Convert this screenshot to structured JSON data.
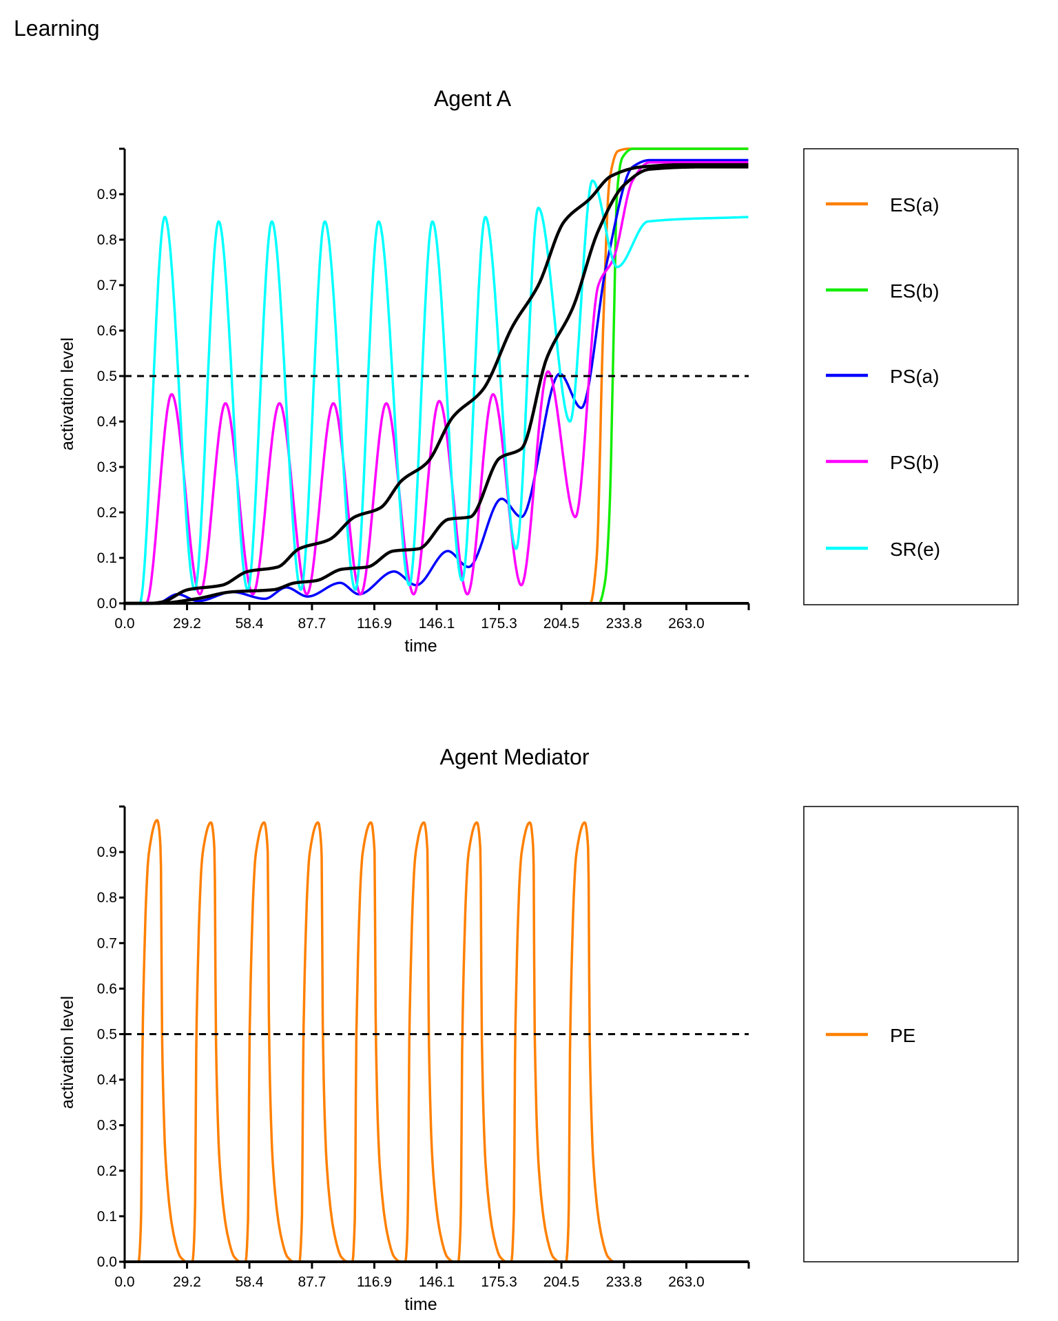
{
  "page_title": "Learning",
  "chart_data": [
    {
      "type": "line",
      "title": "Agent A",
      "xlabel": "time",
      "ylabel": "activation level",
      "xlim": [
        0,
        292.2
      ],
      "ylim": [
        0,
        1.0
      ],
      "xticks": [
        0.0,
        29.2,
        58.4,
        87.7,
        116.9,
        146.1,
        175.3,
        204.5,
        233.8,
        263.0,
        292.2
      ],
      "xtick_labels": [
        "0.0",
        "29.2",
        "58.4",
        "87.7",
        "116.9",
        "146.1",
        "175.3",
        "204.5",
        "233.8",
        "263.0"
      ],
      "yticks": [
        0.0,
        0.1,
        0.2,
        0.3,
        0.4,
        0.5,
        0.6,
        0.7,
        0.8,
        0.9,
        1.0
      ],
      "ytick_labels": [
        "0.0",
        "0.1",
        "0.2",
        "0.3",
        "0.4",
        "0.5",
        "0.6",
        "0.7",
        "0.8",
        "0.9"
      ],
      "threshold": 0.5,
      "legend_placement": "right",
      "series": [
        {
          "name": "ES(a)",
          "color": "#ff7f00",
          "points": [
            [
              0,
              0
            ],
            [
              218,
              0
            ],
            [
              221,
              0.1
            ],
            [
              224,
              0.6
            ],
            [
              227,
              0.93
            ],
            [
              231,
              0.995
            ],
            [
              236,
              1.0
            ],
            [
              292.2,
              1.0
            ]
          ]
        },
        {
          "name": "ES(b)",
          "color": "#11ee00",
          "points": [
            [
              0,
              0
            ],
            [
              222,
              0
            ],
            [
              225,
              0.05
            ],
            [
              227,
              0.2
            ],
            [
              229,
              0.6
            ],
            [
              230.5,
              0.9
            ],
            [
              233,
              0.98
            ],
            [
              238,
              1.0
            ],
            [
              292.2,
              1.0
            ]
          ]
        },
        {
          "name": "PS(a)",
          "color": "#0000ff",
          "points": [
            [
              0,
              0
            ],
            [
              15,
              0
            ],
            [
              24.8,
              0.02
            ],
            [
              34.4,
              0.005
            ],
            [
              50.4,
              0.025
            ],
            [
              65.6,
              0.01
            ],
            [
              75.7,
              0.035
            ],
            [
              85.7,
              0.015
            ],
            [
              100.9,
              0.045
            ],
            [
              109.7,
              0.02
            ],
            [
              126.1,
              0.07
            ],
            [
              136.5,
              0.04
            ],
            [
              151.3,
              0.115
            ],
            [
              161,
              0.08
            ],
            [
              176.5,
              0.23
            ],
            [
              185.7,
              0.19
            ],
            [
              203.7,
              0.505
            ],
            [
              213.8,
              0.43
            ],
            [
              225.8,
              0.75
            ],
            [
              237.8,
              0.96
            ],
            [
              245.8,
              0.975
            ],
            [
              292.2,
              0.975
            ]
          ]
        },
        {
          "name": "PS(b)",
          "color": "#ff00ff",
          "points": [
            [
              0,
              0
            ],
            [
              10,
              0
            ],
            [
              22,
              0.46
            ],
            [
              35.2,
              0.02
            ],
            [
              47.2,
              0.44
            ],
            [
              60,
              0.02
            ],
            [
              72.5,
              0.44
            ],
            [
              85.3,
              0.02
            ],
            [
              97.7,
              0.44
            ],
            [
              110.5,
              0.02
            ],
            [
              122.5,
              0.44
            ],
            [
              135.3,
              0.02
            ],
            [
              147.3,
              0.445
            ],
            [
              160.5,
              0.02
            ],
            [
              172.5,
              0.46
            ],
            [
              185.7,
              0.04
            ],
            [
              198.2,
              0.51
            ],
            [
              211,
              0.19
            ],
            [
              221.8,
              0.7
            ],
            [
              229,
              0.76
            ],
            [
              237.8,
              0.93
            ],
            [
              245.8,
              0.97
            ],
            [
              292.2,
              0.97
            ]
          ]
        },
        {
          "name": "SR(e)",
          "color": "#00ffff",
          "points": [
            [
              0,
              0
            ],
            [
              7,
              0
            ],
            [
              18.8,
              0.85
            ],
            [
              32.8,
              0.03
            ],
            [
              44,
              0.84
            ],
            [
              57.6,
              0.03
            ],
            [
              68.9,
              0.84
            ],
            [
              82.5,
              0.03
            ],
            [
              93.7,
              0.84
            ],
            [
              108,
              0.03
            ],
            [
              118.9,
              0.84
            ],
            [
              133.3,
              0.04
            ],
            [
              144.1,
              0.84
            ],
            [
              158,
              0.05
            ],
            [
              168.9,
              0.85
            ],
            [
              183.3,
              0.12
            ],
            [
              193.7,
              0.87
            ],
            [
              208.5,
              0.4
            ],
            [
              219,
              0.93
            ],
            [
              230.6,
              0.74
            ],
            [
              245,
              0.84
            ],
            [
              292.2,
              0.85
            ]
          ]
        },
        {
          "color": "#000000",
          "points": [
            [
              0,
              0
            ],
            [
              12,
              0
            ],
            [
              17.6,
              0.003
            ],
            [
              29.6,
              0.03
            ],
            [
              45.6,
              0.04
            ],
            [
              57.6,
              0.07
            ],
            [
              71.7,
              0.08
            ],
            [
              81.7,
              0.12
            ],
            [
              95.7,
              0.14
            ],
            [
              107.7,
              0.19
            ],
            [
              119.7,
              0.21
            ],
            [
              129.7,
              0.27
            ],
            [
              141.7,
              0.31
            ],
            [
              153.7,
              0.41
            ],
            [
              167.7,
              0.47
            ],
            [
              181.7,
              0.61
            ],
            [
              193.7,
              0.7
            ],
            [
              205.8,
              0.84
            ],
            [
              217.8,
              0.89
            ],
            [
              227.8,
              0.94
            ],
            [
              241.8,
              0.96
            ],
            [
              261.8,
              0.965
            ],
            [
              292.2,
              0.965
            ]
          ]
        },
        {
          "color": "#000000",
          "points": [
            [
              0,
              0
            ],
            [
              15,
              0
            ],
            [
              33.6,
              0.01
            ],
            [
              49.6,
              0.025
            ],
            [
              69.7,
              0.03
            ],
            [
              79.7,
              0.045
            ],
            [
              89.7,
              0.05
            ],
            [
              101.7,
              0.075
            ],
            [
              113.7,
              0.08
            ],
            [
              125.7,
              0.115
            ],
            [
              137.7,
              0.12
            ],
            [
              151.7,
              0.185
            ],
            [
              161.7,
              0.19
            ],
            [
              175.7,
              0.32
            ],
            [
              185.7,
              0.34
            ],
            [
              197.7,
              0.54
            ],
            [
              209.8,
              0.65
            ],
            [
              221.8,
              0.82
            ],
            [
              233.8,
              0.92
            ],
            [
              245.8,
              0.955
            ],
            [
              269.8,
              0.96
            ],
            [
              292.2,
              0.96
            ]
          ]
        }
      ]
    },
    {
      "type": "line",
      "title": "Agent Mediator",
      "xlabel": "time",
      "ylabel": "activation level",
      "xlim": [
        0,
        292.2
      ],
      "ylim": [
        0,
        1.0
      ],
      "xticks": [
        0.0,
        29.2,
        58.4,
        87.7,
        116.9,
        146.1,
        175.3,
        204.5,
        233.8,
        263.0,
        292.2
      ],
      "xtick_labels": [
        "0.0",
        "29.2",
        "58.4",
        "87.7",
        "116.9",
        "146.1",
        "175.3",
        "204.5",
        "233.8",
        "263.0"
      ],
      "yticks": [
        0.0,
        0.1,
        0.2,
        0.3,
        0.4,
        0.5,
        0.6,
        0.7,
        0.8,
        0.9,
        1.0
      ],
      "ytick_labels": [
        "0.0",
        "0.1",
        "0.2",
        "0.3",
        "0.4",
        "0.5",
        "0.6",
        "0.7",
        "0.8",
        "0.9"
      ],
      "threshold": 0.5,
      "legend_placement": "right",
      "series": [
        {
          "name": "PE",
          "color": "#ff8000",
          "points": [
            [
              0,
              0
            ],
            [
              6.5,
              0
            ],
            [
              7.7,
              0.1
            ],
            [
              8.4,
              0.5
            ],
            [
              11.4,
              0.9
            ],
            [
              15.2,
              0.97
            ],
            [
              16.9,
              0.9
            ],
            [
              17.5,
              0.5
            ],
            [
              19.5,
              0.2
            ],
            [
              23.4,
              0.05
            ],
            [
              26.2,
              0.01
            ],
            [
              29.2,
              0
            ],
            [
              31.7,
              0
            ],
            [
              32.9,
              0.1
            ],
            [
              33.6,
              0.5
            ],
            [
              36.6,
              0.9
            ],
            [
              40.4,
              0.965
            ],
            [
              42.1,
              0.9
            ],
            [
              42.7,
              0.5
            ],
            [
              44.7,
              0.2
            ],
            [
              48.6,
              0.05
            ],
            [
              51.4,
              0.01
            ],
            [
              54.4,
              0
            ],
            [
              56.6,
              0
            ],
            [
              57.8,
              0.1
            ],
            [
              58.5,
              0.5
            ],
            [
              61.5,
              0.9
            ],
            [
              65.3,
              0.965
            ],
            [
              67,
              0.9
            ],
            [
              67.6,
              0.5
            ],
            [
              69.6,
              0.2
            ],
            [
              73.5,
              0.05
            ],
            [
              76.3,
              0.01
            ],
            [
              79.3,
              0
            ],
            [
              81.8,
              0
            ],
            [
              83,
              0.1
            ],
            [
              83.7,
              0.5
            ],
            [
              86.7,
              0.9
            ],
            [
              90.5,
              0.965
            ],
            [
              92.2,
              0.9
            ],
            [
              92.8,
              0.5
            ],
            [
              94.8,
              0.2
            ],
            [
              98.7,
              0.05
            ],
            [
              101.5,
              0.01
            ],
            [
              104.5,
              0
            ],
            [
              106.6,
              0
            ],
            [
              107.8,
              0.1
            ],
            [
              108.5,
              0.5
            ],
            [
              111.5,
              0.9
            ],
            [
              115.3,
              0.965
            ],
            [
              117,
              0.9
            ],
            [
              117.6,
              0.5
            ],
            [
              119.6,
              0.2
            ],
            [
              123.5,
              0.05
            ],
            [
              126.3,
              0.01
            ],
            [
              129.3,
              0
            ],
            [
              131.4,
              0
            ],
            [
              132.6,
              0.1
            ],
            [
              133.3,
              0.5
            ],
            [
              136.3,
              0.9
            ],
            [
              140.1,
              0.965
            ],
            [
              141.8,
              0.9
            ],
            [
              142.4,
              0.5
            ],
            [
              144.4,
              0.2
            ],
            [
              148.3,
              0.05
            ],
            [
              151.1,
              0.01
            ],
            [
              154.1,
              0
            ],
            [
              156.2,
              0
            ],
            [
              157.4,
              0.1
            ],
            [
              158.1,
              0.5
            ],
            [
              161.1,
              0.9
            ],
            [
              164.9,
              0.965
            ],
            [
              166.6,
              0.9
            ],
            [
              167.2,
              0.5
            ],
            [
              169.2,
              0.2
            ],
            [
              173.1,
              0.05
            ],
            [
              175.9,
              0.01
            ],
            [
              178.9,
              0
            ],
            [
              181,
              0
            ],
            [
              182.2,
              0.1
            ],
            [
              182.9,
              0.5
            ],
            [
              185.9,
              0.9
            ],
            [
              189.7,
              0.965
            ],
            [
              191.4,
              0.9
            ],
            [
              192,
              0.5
            ],
            [
              194,
              0.2
            ],
            [
              197.9,
              0.05
            ],
            [
              200.7,
              0.01
            ],
            [
              203.7,
              0
            ],
            [
              206.7,
              0
            ],
            [
              207.9,
              0.1
            ],
            [
              208.6,
              0.5
            ],
            [
              211.6,
              0.9
            ],
            [
              215.4,
              0.965
            ],
            [
              217.1,
              0.9
            ],
            [
              217.7,
              0.5
            ],
            [
              219.7,
              0.2
            ],
            [
              223.6,
              0.05
            ],
            [
              226.4,
              0.01
            ],
            [
              229.4,
              0
            ],
            [
              292.2,
              0
            ]
          ]
        }
      ]
    }
  ]
}
